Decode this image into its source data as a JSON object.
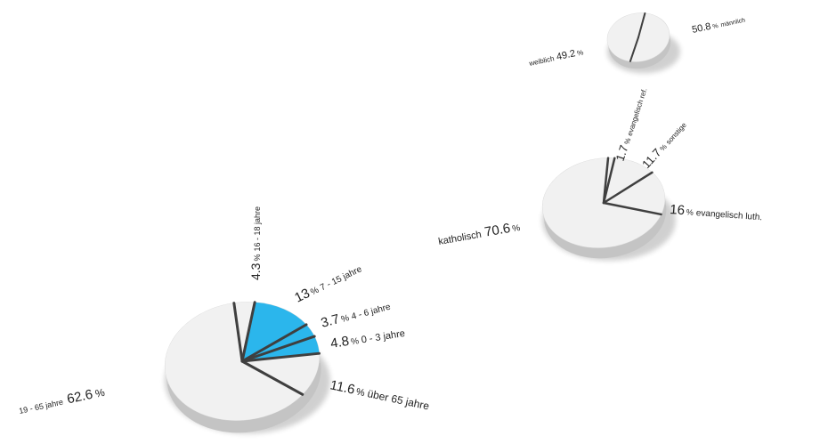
{
  "chart_data": [
    {
      "type": "pie",
      "topic": "age",
      "slices": [
        {
          "value": 62.6,
          "unit": "%",
          "label": "19 - 65 jahre",
          "color": "#f1f1f1",
          "highlight": false
        },
        {
          "value": 4.3,
          "unit": "%",
          "label": "16 - 18 jahre",
          "color": "#f1f1f1",
          "highlight": false
        },
        {
          "value": 13.0,
          "unit": "%",
          "label": "7 - 15 jahre",
          "color": "#2bb6ec",
          "highlight": true
        },
        {
          "value": 3.7,
          "unit": "%",
          "label": "4 - 6 jahre",
          "color": "#2bb6ec",
          "highlight": true
        },
        {
          "value": 4.8,
          "unit": "%",
          "label": "0 - 3 jahre",
          "color": "#2bb6ec",
          "highlight": true
        },
        {
          "value": 11.6,
          "unit": "%",
          "label": "über 65 jahre",
          "color": "#f1f1f1",
          "highlight": false
        }
      ]
    },
    {
      "type": "pie",
      "topic": "religion",
      "slices": [
        {
          "value": 70.6,
          "unit": "%",
          "label": "katholisch",
          "color": "#f1f1f1"
        },
        {
          "value": 1.7,
          "unit": "%",
          "label": "evangelisch ref.",
          "color": "#f1f1f1"
        },
        {
          "value": 11.7,
          "unit": "%",
          "label": "sonstige",
          "color": "#f1f1f1"
        },
        {
          "value": 16.0,
          "unit": "%",
          "label": "evangelisch luth.",
          "color": "#f1f1f1"
        }
      ]
    },
    {
      "type": "pie",
      "topic": "gender",
      "slices": [
        {
          "value": 49.2,
          "unit": "%",
          "label": "weiblich",
          "color": "#f1f1f1"
        },
        {
          "value": 50.8,
          "unit": "%",
          "label": "männlich",
          "color": "#f1f1f1"
        }
      ]
    }
  ]
}
